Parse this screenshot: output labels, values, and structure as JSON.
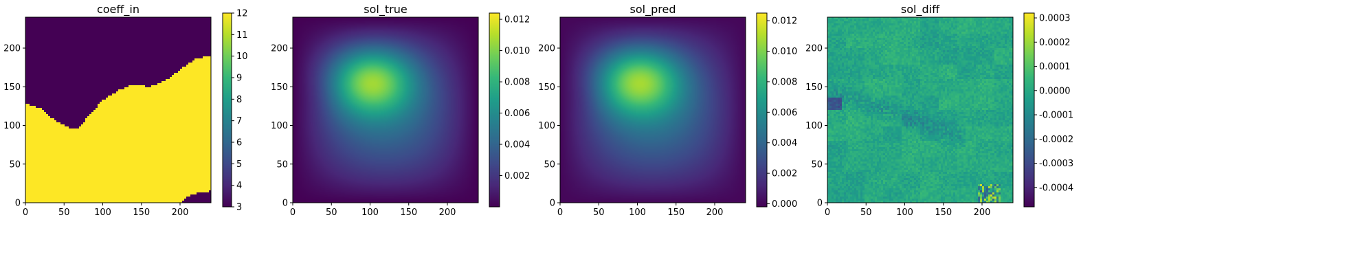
{
  "figure": {
    "background": "#ffffff",
    "colormap": "viridis",
    "colormap_stops": [
      "#440154",
      "#482878",
      "#3e4989",
      "#31688e",
      "#26828e",
      "#1f9e89",
      "#35b779",
      "#6ece58",
      "#b5de2b",
      "#fde725"
    ]
  },
  "chart_data": [
    {
      "type": "heatmap",
      "title": "coeff_in",
      "x_ticks": [
        0,
        50,
        100,
        150,
        200
      ],
      "y_ticks": [
        0,
        50,
        100,
        150,
        200
      ],
      "xlim": [
        0,
        240
      ],
      "ylim": [
        0,
        240
      ],
      "grid_size": 240,
      "values": "binary field: 12 below a wavy interface, 3 above",
      "interface_y_at_x": [
        [
          0,
          128
        ],
        [
          20,
          122
        ],
        [
          40,
          105
        ],
        [
          60,
          96
        ],
        [
          70,
          97
        ],
        [
          80,
          110
        ],
        [
          100,
          133
        ],
        [
          120,
          145
        ],
        [
          140,
          153
        ],
        [
          160,
          150
        ],
        [
          180,
          157
        ],
        [
          200,
          172
        ],
        [
          220,
          186
        ],
        [
          240,
          190
        ]
      ],
      "corner_region_y_at_x": [
        [
          200,
          0
        ],
        [
          210,
          8
        ],
        [
          225,
          13
        ],
        [
          240,
          15
        ]
      ],
      "value_low": 3,
      "value_high": 12,
      "colorbar": {
        "min": 3,
        "max": 12,
        "ticks": [
          "3",
          "4",
          "5",
          "6",
          "7",
          "8",
          "9",
          "10",
          "11",
          "12"
        ]
      }
    },
    {
      "type": "heatmap",
      "title": "sol_true",
      "x_ticks": [
        0,
        50,
        100,
        150,
        200
      ],
      "y_ticks": [
        0,
        50,
        100,
        150,
        200
      ],
      "xlim": [
        0,
        240
      ],
      "ylim": [
        0,
        240
      ],
      "grid_size": 240,
      "peak": {
        "x": 95,
        "y": 165,
        "value": 0.0123
      },
      "colorbar": {
        "min": 0.0,
        "max": 0.0124,
        "ticks": [
          "0.002",
          "0.004",
          "0.006",
          "0.008",
          "0.010",
          "0.012"
        ]
      }
    },
    {
      "type": "heatmap",
      "title": "sol_pred",
      "x_ticks": [
        0,
        50,
        100,
        150,
        200
      ],
      "y_ticks": [
        0,
        50,
        100,
        150,
        200
      ],
      "xlim": [
        0,
        240
      ],
      "ylim": [
        0,
        240
      ],
      "grid_size": 240,
      "peak": {
        "x": 95,
        "y": 165,
        "value": 0.0124
      },
      "colorbar": {
        "min": -0.0002,
        "max": 0.0125,
        "ticks": [
          "0.000",
          "0.002",
          "0.004",
          "0.006",
          "0.008",
          "0.010",
          "0.012"
        ]
      }
    },
    {
      "type": "heatmap",
      "title": "sol_diff",
      "x_ticks": [
        0,
        50,
        100,
        150,
        200
      ],
      "y_ticks": [
        0,
        50,
        100,
        150,
        200
      ],
      "xlim": [
        0,
        240
      ],
      "ylim": [
        0,
        240
      ],
      "grid_size": 240,
      "values": "blocky noisy error field, mostly near 0.0000, darker negative patches along a diagonal band",
      "colorbar": {
        "min": -0.00048,
        "max": 0.00032,
        "ticks": [
          "-0.0004",
          "-0.0003",
          "-0.0002",
          "-0.0001",
          "0.0000",
          "0.0001",
          "0.0002",
          "0.0003"
        ]
      }
    }
  ]
}
